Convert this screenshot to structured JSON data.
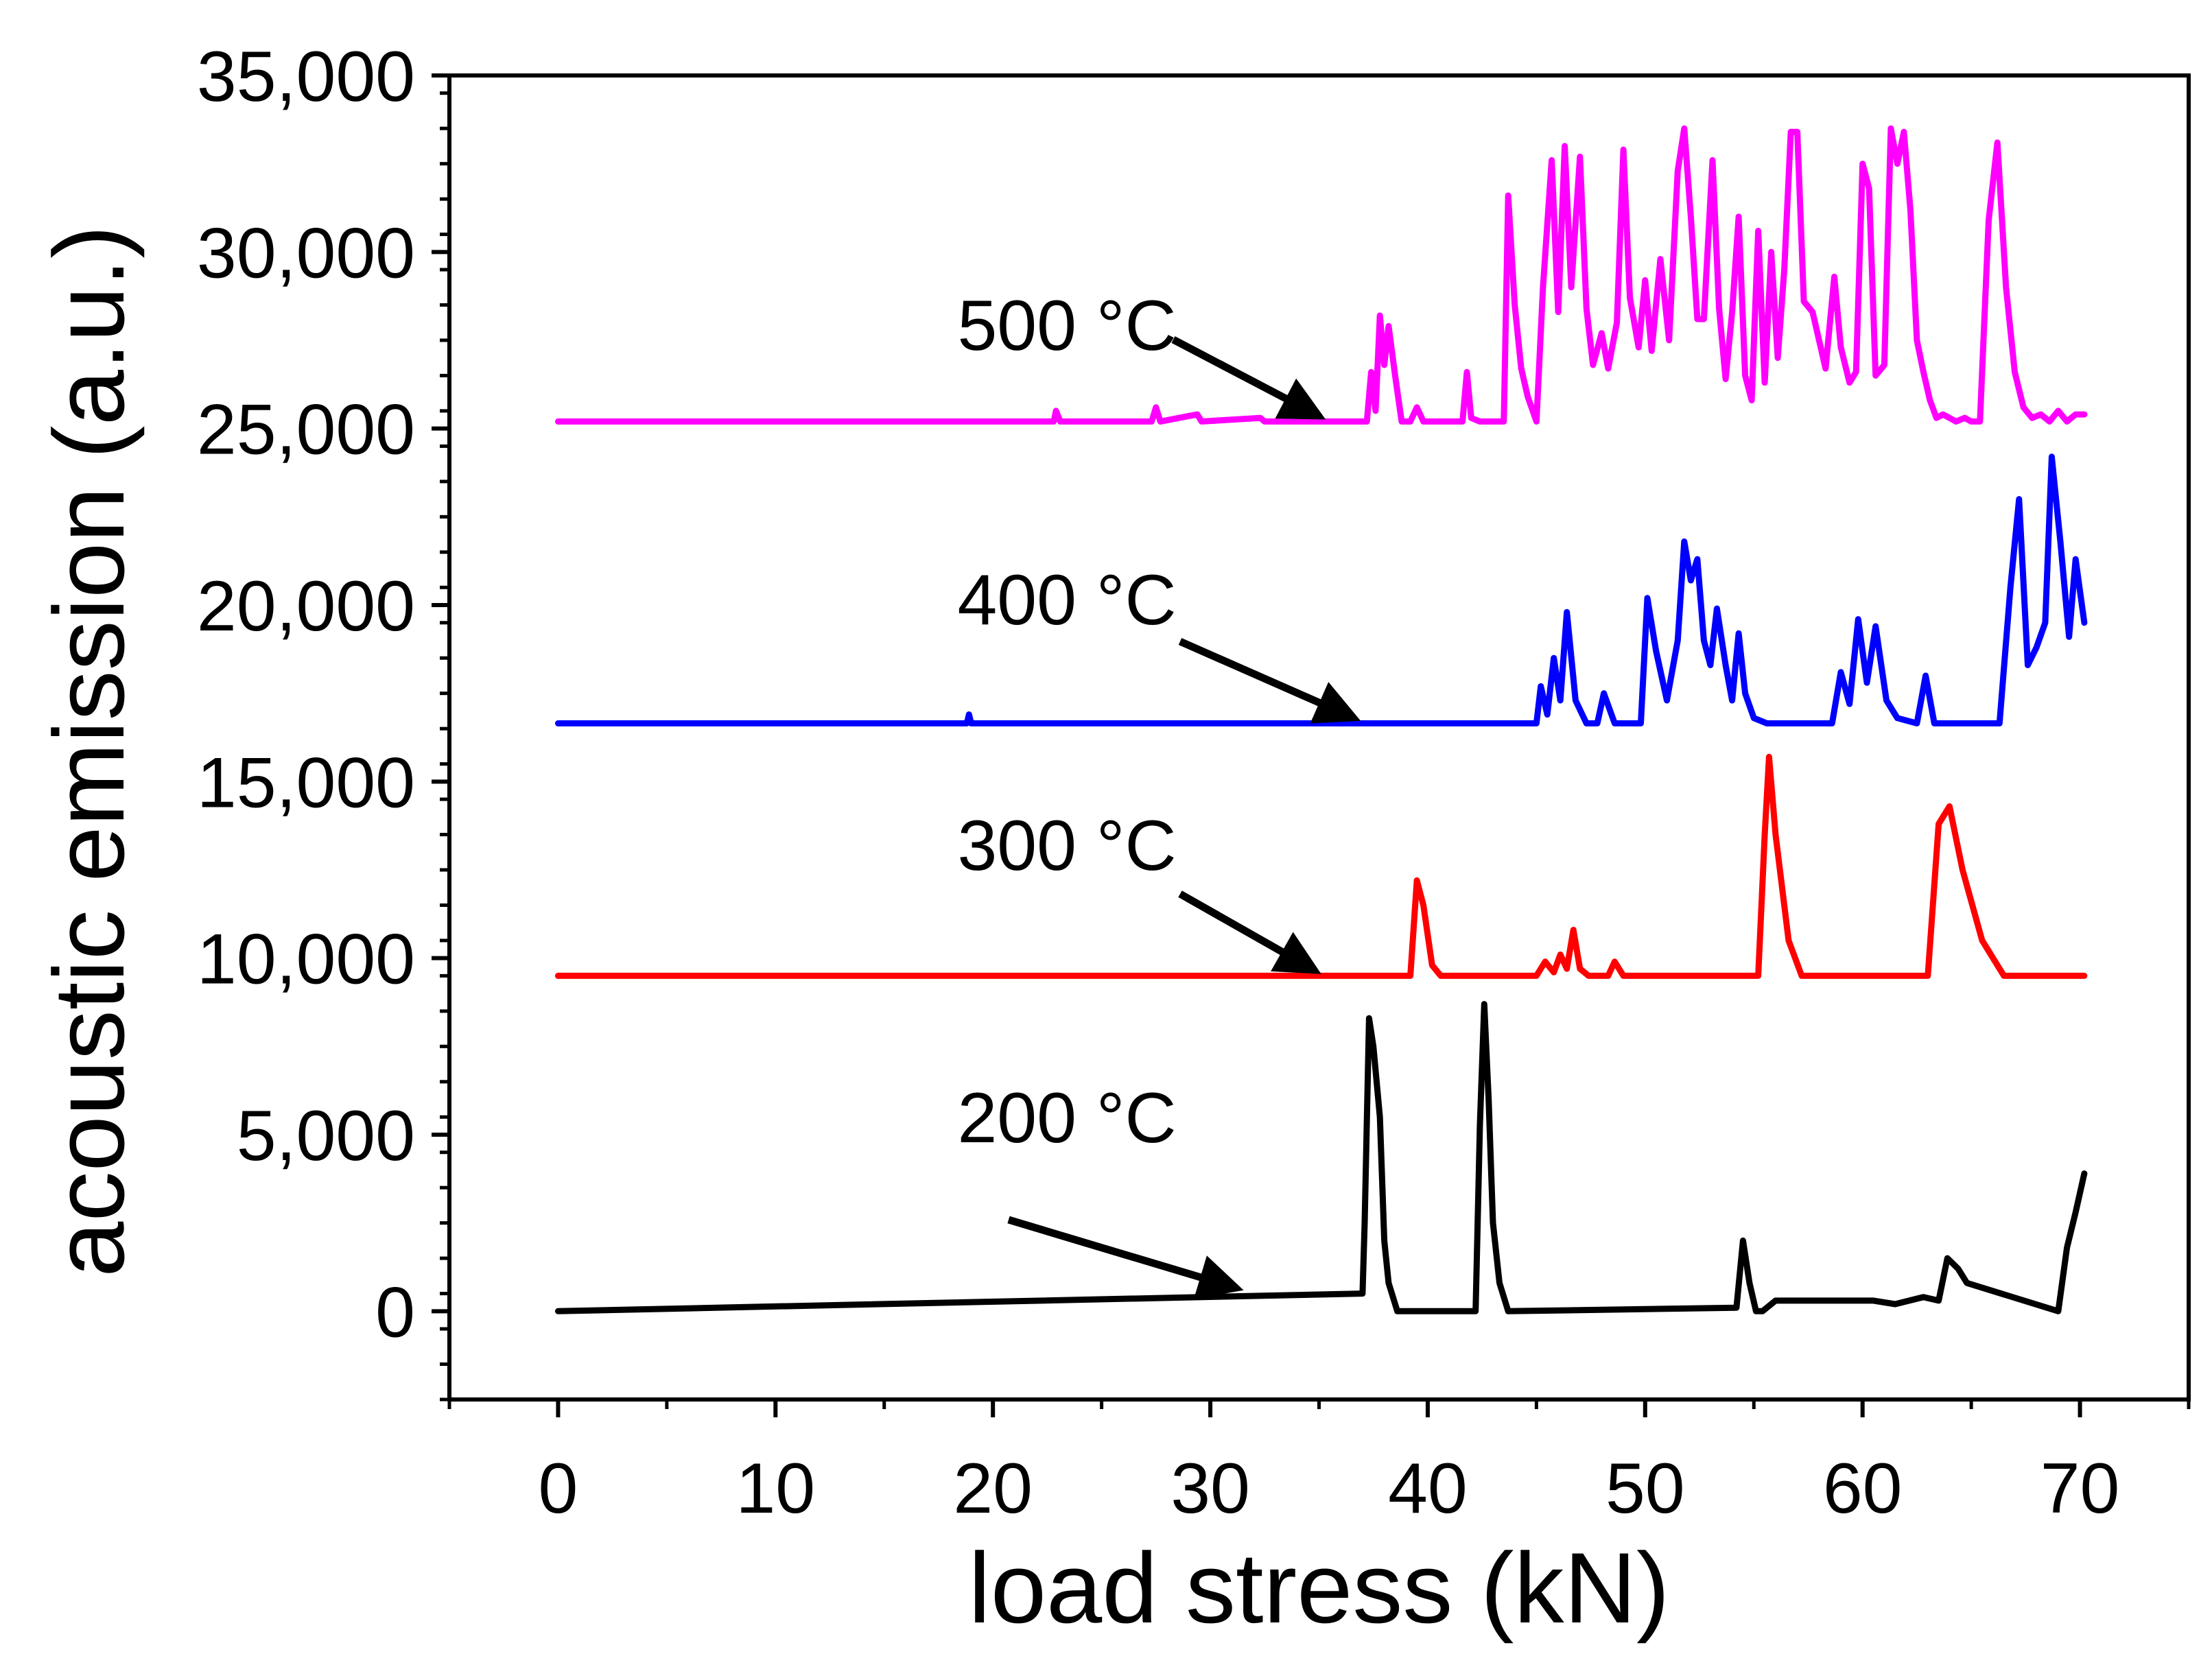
{
  "chart_data": {
    "type": "line",
    "title": "",
    "xlabel": "load stress (kN)",
    "ylabel": "acoustic emission (a.u.)",
    "xlim": [
      -5,
      75
    ],
    "ylim": [
      -2500,
      35000
    ],
    "xticks": [
      0,
      10,
      20,
      30,
      40,
      50,
      60,
      70
    ],
    "xtick_labels": [
      "0",
      "10",
      "20",
      "30",
      "40",
      "50",
      "60",
      "70"
    ],
    "yticks": [
      0,
      5000,
      10000,
      15000,
      20000,
      25000,
      30000,
      35000
    ],
    "ytick_labels": [
      "0",
      "5,000",
      "10,000",
      "15,000",
      "20,000",
      "25,000",
      "30,000",
      "35,000"
    ],
    "grid": false,
    "legend": "none",
    "series": [
      {
        "name": "200 °C",
        "color": "#000000",
        "x": [
          0,
          37,
          37.1,
          37.3,
          37.5,
          37.8,
          38.0,
          38.2,
          38.6,
          42.2,
          42.4,
          42.6,
          42.8,
          43.0,
          43.3,
          43.7,
          54.2,
          54.5,
          54.8,
          55.1,
          55.4,
          56.0,
          56.4,
          60.5,
          61.5,
          62.8,
          63.5,
          63.9,
          64.4,
          64.8,
          69.0,
          69.4,
          69.8,
          70.2
        ],
        "y": [
          0,
          500,
          2500,
          8300,
          7500,
          5500,
          2000,
          800,
          0,
          0,
          5300,
          8700,
          6000,
          2500,
          800,
          0,
          100,
          2000,
          800,
          0,
          0,
          300,
          300,
          300,
          200,
          400,
          300,
          1500,
          1200,
          800,
          0,
          1800,
          2800,
          3900
        ]
      },
      {
        "name": "300 °C",
        "color": "#ff0000",
        "x": [
          0,
          39.2,
          39.5,
          39.8,
          40.2,
          40.6,
          45.0,
          45.4,
          45.8,
          46.1,
          46.4,
          46.7,
          47.0,
          47.4,
          48.3,
          48.6,
          49.0,
          55.2,
          55.5,
          55.7,
          56.0,
          56.6,
          57.2,
          63.0,
          63.5,
          64.0,
          64.6,
          65.5,
          66.5,
          70.2
        ],
        "y": [
          9500,
          9500,
          12200,
          11500,
          9800,
          9500,
          9500,
          9900,
          9600,
          10100,
          9700,
          10800,
          9700,
          9500,
          9500,
          9900,
          9500,
          9500,
          13500,
          15700,
          13500,
          10500,
          9500,
          9500,
          13800,
          14300,
          12500,
          10500,
          9500,
          9500
        ]
      },
      {
        "name": "400 °C",
        "color": "#0000ff",
        "x": [
          0,
          18.8,
          18.9,
          19.0,
          45.0,
          45.2,
          45.5,
          45.8,
          46.1,
          46.4,
          46.8,
          47.3,
          47.8,
          48.1,
          48.6,
          49.8,
          50.1,
          50.5,
          51.0,
          51.5,
          51.8,
          52.1,
          52.4,
          52.7,
          53.0,
          53.3,
          53.7,
          54.0,
          54.3,
          54.6,
          55.0,
          55.6,
          56.4,
          58.6,
          59.0,
          59.4,
          59.8,
          60.2,
          60.6,
          61.1,
          61.6,
          62.5,
          62.9,
          63.3,
          66.3,
          66.8,
          67.2,
          67.6,
          68.0,
          68.4,
          68.7,
          69.1,
          69.5,
          69.8,
          70.2
        ],
        "y": [
          16650,
          16650,
          16900,
          16650,
          16650,
          17700,
          16900,
          18500,
          17300,
          19800,
          17300,
          16650,
          16650,
          17500,
          16650,
          16650,
          20200,
          18700,
          17300,
          19000,
          21800,
          20700,
          21300,
          19000,
          18300,
          19900,
          18300,
          17300,
          19200,
          17500,
          16800,
          16650,
          16650,
          16650,
          18100,
          17200,
          19600,
          17800,
          19400,
          17300,
          16800,
          16650,
          18000,
          16650,
          16650,
          20500,
          23000,
          18300,
          18800,
          19500,
          24200,
          21800,
          19100,
          21300,
          19500
        ]
      },
      {
        "name": "500 °C",
        "color": "#ff00ff",
        "x": [
          0,
          22.8,
          22.9,
          23.1,
          27.3,
          27.5,
          27.7,
          29.4,
          29.6,
          32.3,
          32.5,
          37.2,
          37.4,
          37.6,
          37.8,
          38.0,
          38.2,
          38.5,
          38.8,
          39.2,
          39.5,
          39.8,
          41.6,
          41.8,
          42.0,
          42.4,
          43.5,
          43.7,
          44.0,
          44.3,
          44.6,
          45.0,
          45.3,
          45.7,
          46.0,
          46.3,
          46.6,
          47.0,
          47.3,
          47.6,
          48.0,
          48.3,
          48.7,
          49.0,
          49.3,
          49.7,
          50.0,
          50.3,
          50.7,
          51.1,
          51.5,
          51.8,
          52.1,
          52.4,
          52.7,
          53.1,
          53.4,
          53.7,
          54.0,
          54.3,
          54.6,
          54.9,
          55.2,
          55.5,
          55.8,
          56.1,
          56.4,
          56.7,
          57.0,
          57.3,
          57.7,
          58.0,
          58.3,
          58.7,
          59.0,
          59.4,
          59.7,
          60.0,
          60.3,
          60.6,
          61.0,
          61.3,
          61.6,
          61.9,
          62.2,
          62.5,
          62.8,
          63.1,
          63.4,
          63.7,
          64.0,
          64.3,
          64.7,
          65.0,
          65.4,
          65.8,
          66.2,
          66.6,
          67.0,
          67.4,
          67.8,
          68.2,
          68.6,
          69.0,
          69.4,
          69.8,
          70.2
        ],
        "y": [
          25200,
          25200,
          25500,
          25200,
          25200,
          25600,
          25200,
          25400,
          25200,
          25300,
          25200,
          25200,
          26600,
          25500,
          28200,
          26800,
          27900,
          26500,
          25200,
          25200,
          25600,
          25200,
          25200,
          26600,
          25300,
          25200,
          25200,
          31600,
          28500,
          26700,
          25900,
          25200,
          29000,
          32600,
          28300,
          33000,
          29000,
          32700,
          28400,
          26800,
          27700,
          26700,
          28000,
          32900,
          28700,
          27300,
          29200,
          27200,
          29800,
          27500,
          32300,
          33500,
          31000,
          28100,
          28100,
          32600,
          28400,
          26400,
          28300,
          31000,
          26500,
          25800,
          30600,
          26300,
          30000,
          27000,
          29500,
          33400,
          33400,
          28600,
          28300,
          27500,
          26700,
          29300,
          27300,
          26300,
          26600,
          32500,
          31800,
          26500,
          26800,
          33500,
          32500,
          33400,
          31200,
          27500,
          26600,
          25800,
          25300,
          25400,
          25300,
          25200,
          25300,
          25200,
          25200,
          30900,
          33100,
          29000,
          26600,
          25600,
          25300,
          25400,
          25200,
          25500,
          25200,
          25400,
          25400
        ]
      }
    ],
    "annotations": [
      {
        "text": "500 °C",
        "arrow_to": [
          35,
          25200
        ]
      },
      {
        "text": "400 °C",
        "arrow_to": [
          36.6,
          16650
        ]
      },
      {
        "text": "300 °C",
        "arrow_to": [
          34.8,
          9500
        ]
      },
      {
        "text": "200 °C",
        "arrow_to": [
          31.2,
          500
        ]
      }
    ]
  }
}
